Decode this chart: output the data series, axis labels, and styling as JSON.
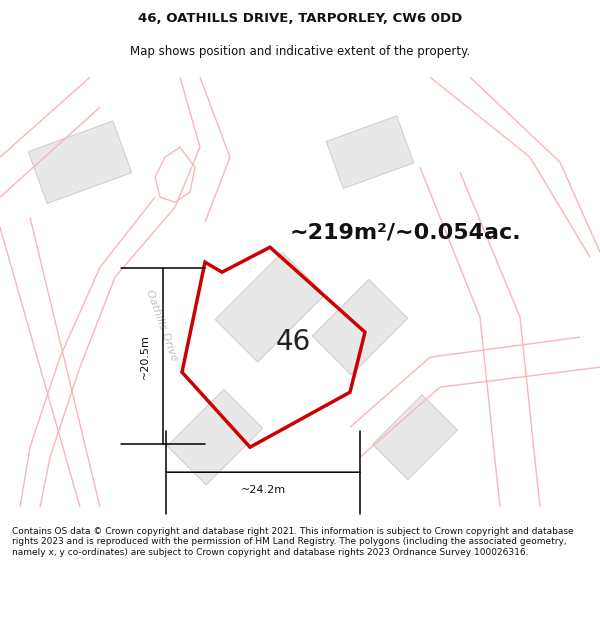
{
  "title": "46, OATHILLS DRIVE, TARPORLEY, CW6 0DD",
  "subtitle": "Map shows position and indicative extent of the property.",
  "area_label": "~219m²/~0.054ac.",
  "number_label": "46",
  "dim_width_label": "~24.2m",
  "dim_height_label": "~20.5m",
  "road_label": "Oathills Drive",
  "footer": "Contains OS data © Crown copyright and database right 2021. This information is subject to Crown copyright and database rights 2023 and is reproduced with the permission of HM Land Registry. The polygons (including the associated geometry, namely x, y co-ordinates) are subject to Crown copyright and database rights 2023 Ordnance Survey 100026316.",
  "bg_color": "#ffffff",
  "map_bg": "#ffffff",
  "plot_color": "#cc0000",
  "building_fill": "#e8e8e8",
  "building_edge": "#cccccc",
  "road_color": "#f5b8b8",
  "title_color": "#111111",
  "footer_color": "#111111",
  "road_label_color": "#c0c0c0",
  "title_fontsize": 9.5,
  "subtitle_fontsize": 8.5,
  "area_fontsize": 16,
  "number_fontsize": 20,
  "dim_fontsize": 8,
  "road_label_fontsize": 8,
  "footer_fontsize": 6.5
}
